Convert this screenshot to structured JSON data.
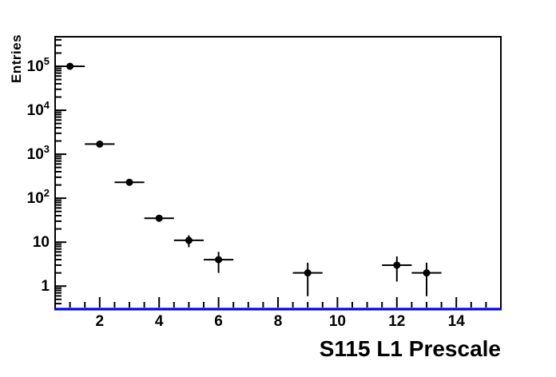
{
  "chart_data": {
    "type": "scatter",
    "title": "",
    "xlabel": "S115 L1 Prescale",
    "ylabel": "Entries",
    "yscale": "log",
    "xlim": [
      0.5,
      15.5
    ],
    "ylim": [
      0.3,
      470000
    ],
    "grid": false,
    "legend": null,
    "xticks_labeled": [
      2,
      4,
      6,
      8,
      10,
      12,
      14
    ],
    "xtick_minor_step": 0.5,
    "ytick_labeled_decades": [
      0,
      1,
      2,
      3,
      4,
      5
    ],
    "points": {
      "x": [
        1,
        2,
        3,
        4,
        5,
        6,
        9,
        12,
        13
      ],
      "y": [
        100000,
        1700,
        230,
        35,
        11,
        4,
        2,
        3,
        2
      ],
      "yerr": [
        316.2,
        41.2,
        15.2,
        5.9,
        3.3,
        2.0,
        1.41,
        1.73,
        1.41
      ],
      "xerr": 0.5
    },
    "marker": {
      "shape": "circle",
      "color": "#000000",
      "radius": 4.5
    },
    "colors": {
      "frame": "#000000",
      "x_axis_line": "#0202f0",
      "text": "#000000",
      "background": "#ffffff"
    }
  }
}
